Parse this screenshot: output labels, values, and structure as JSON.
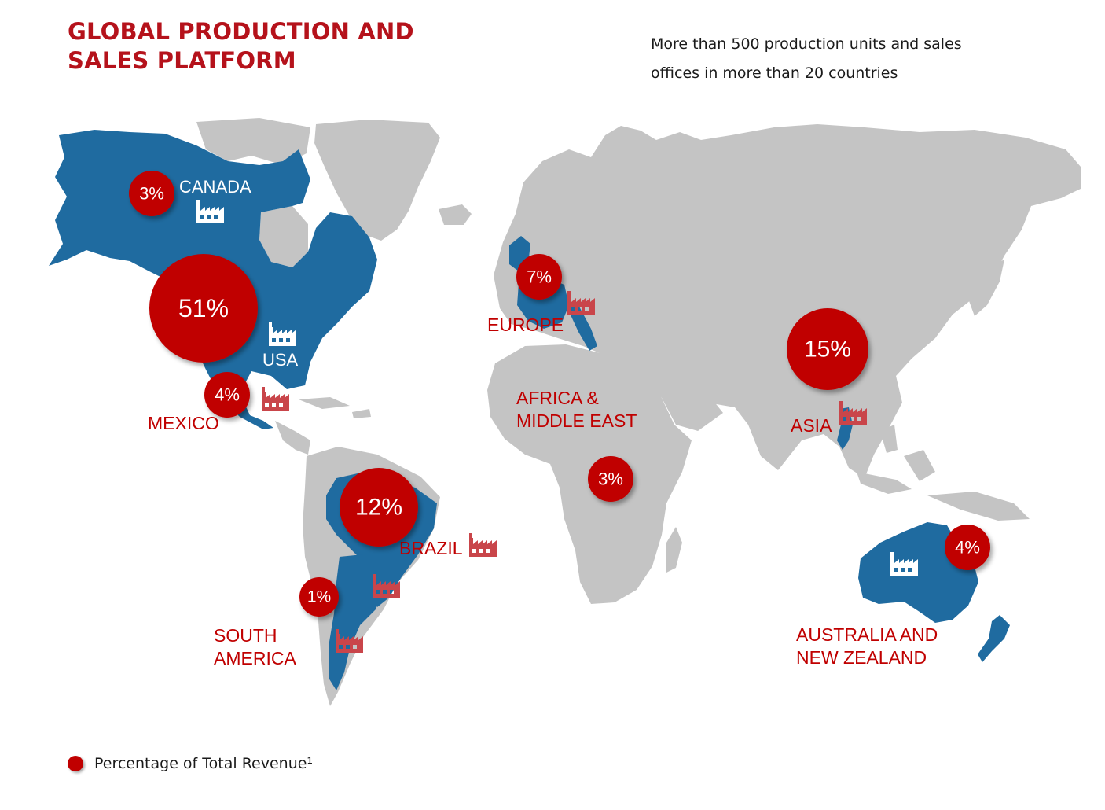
{
  "title": {
    "line1": "GLOBAL PRODUCTION AND",
    "line2": "SALES PLATFORM"
  },
  "subtitle": {
    "line1": "More than 500 production units and sales",
    "line2": "offices in more than 20 countries"
  },
  "colors": {
    "title": "#b5121b",
    "highlight_region": "#1f6ba0",
    "land": "#c4c4c4",
    "bubble": "#c00000",
    "factory_icon_red": "#c9454a"
  },
  "regions": {
    "canada": {
      "label": "CANADA",
      "share": "3%"
    },
    "usa": {
      "label": "USA",
      "share": "51%"
    },
    "mexico": {
      "label": "MEXICO",
      "share": "4%"
    },
    "europe": {
      "label": "EUROPE",
      "share": "7%"
    },
    "africa": {
      "label_line1": "AFRICA &",
      "label_line2": "MIDDLE EAST",
      "share": "3%"
    },
    "asia": {
      "label": "ASIA",
      "share": "15%"
    },
    "brazil": {
      "label": "BRAZIL",
      "share": "12%"
    },
    "south_america": {
      "label_line1": "SOUTH",
      "label_line2": "AMERICA",
      "share": "1%"
    },
    "australia": {
      "label_line1": "AUSTRALIA AND",
      "label_line2": "NEW ZEALAND",
      "share": "4%"
    }
  },
  "icons": [
    "factory-icon"
  ],
  "legend": {
    "label": "Percentage of Total Revenue¹"
  }
}
